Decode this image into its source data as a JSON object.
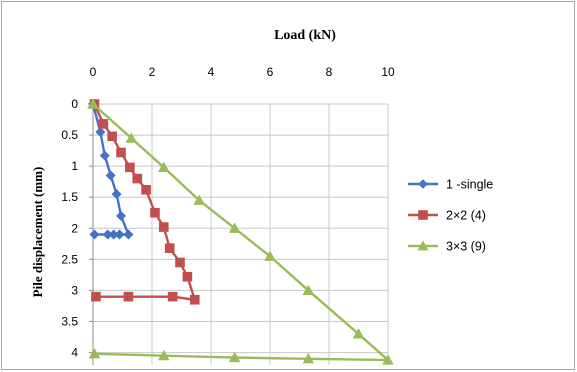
{
  "chart_data": {
    "type": "line",
    "title": "Load (kN)",
    "ylabel": "Pile displacement (mm)",
    "xlabel": "",
    "xlim": [
      0,
      10
    ],
    "ylim": [
      0,
      4.2
    ],
    "y_inverted": true,
    "x_axis_position": "top",
    "x_ticks": [
      "0",
      "2",
      "4",
      "6",
      "8",
      "10"
    ],
    "y_ticks": [
      "0",
      "0.5",
      "1",
      "1.5",
      "2",
      "2.5",
      "3",
      "3.5",
      "4"
    ],
    "grid": true,
    "legend_position": "right",
    "series": [
      {
        "name": "1 -single",
        "color": "#4472c4",
        "marker": "diamond",
        "points": [
          [
            0.0,
            0.0
          ],
          [
            0.25,
            0.45
          ],
          [
            0.4,
            0.83
          ],
          [
            0.6,
            1.15
          ],
          [
            0.8,
            1.45
          ],
          [
            0.95,
            1.8
          ],
          [
            1.2,
            2.1
          ],
          [
            0.9,
            2.1
          ],
          [
            0.7,
            2.1
          ],
          [
            0.5,
            2.1
          ],
          [
            0.05,
            2.1
          ]
        ]
      },
      {
        "name": "2×2 (4)",
        "color": "#c0504d",
        "marker": "square",
        "points": [
          [
            0.05,
            0.0
          ],
          [
            0.35,
            0.32
          ],
          [
            0.65,
            0.52
          ],
          [
            0.95,
            0.78
          ],
          [
            1.25,
            1.02
          ],
          [
            1.5,
            1.2
          ],
          [
            1.8,
            1.38
          ],
          [
            2.1,
            1.75
          ],
          [
            2.4,
            1.98
          ],
          [
            2.6,
            2.32
          ],
          [
            2.95,
            2.55
          ],
          [
            3.2,
            2.78
          ],
          [
            3.45,
            3.15
          ],
          [
            2.7,
            3.1
          ],
          [
            1.2,
            3.1
          ],
          [
            0.1,
            3.1
          ]
        ]
      },
      {
        "name": "3×3 (9)",
        "color": "#9bbb59",
        "marker": "triangle",
        "points": [
          [
            0.0,
            0.0
          ],
          [
            1.3,
            0.55
          ],
          [
            2.4,
            1.02
          ],
          [
            3.6,
            1.55
          ],
          [
            4.8,
            2.0
          ],
          [
            6.0,
            2.45
          ],
          [
            7.3,
            3.0
          ],
          [
            9.0,
            3.7
          ],
          [
            10.0,
            4.12
          ],
          [
            7.3,
            4.1
          ],
          [
            4.8,
            4.08
          ],
          [
            2.4,
            4.05
          ],
          [
            0.05,
            4.02
          ]
        ]
      }
    ]
  }
}
